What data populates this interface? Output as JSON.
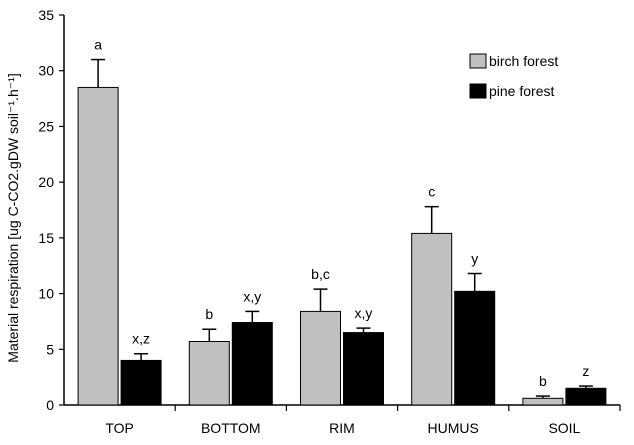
{
  "chart_data": {
    "type": "bar",
    "title": "",
    "xlabel": "",
    "ylabel": "Material respiration [ug C-CO2.gDW soil⁻¹.h⁻¹]",
    "ylim": [
      0,
      35
    ],
    "yticks": [
      0,
      5,
      10,
      15,
      20,
      25,
      30,
      35
    ],
    "grid": false,
    "legend_position": "top-right",
    "categories": [
      "TOP",
      "BOTTOM",
      "RIM",
      "HUMUS",
      "SOIL"
    ],
    "series": [
      {
        "name": "birch forest",
        "color": "#c0c0c0",
        "values": [
          28.5,
          5.7,
          8.4,
          15.4,
          0.6
        ],
        "errors": [
          2.5,
          1.1,
          2.0,
          2.4,
          0.2
        ],
        "labels": [
          "a",
          "b",
          "b,c",
          "c",
          "b"
        ]
      },
      {
        "name": "pine forest",
        "color": "#000000",
        "values": [
          4.0,
          7.4,
          6.5,
          10.2,
          1.5
        ],
        "errors": [
          0.6,
          1.0,
          0.4,
          1.6,
          0.2
        ],
        "labels": [
          "x,z",
          "x,y",
          "x,y",
          "y",
          "z"
        ]
      }
    ]
  }
}
